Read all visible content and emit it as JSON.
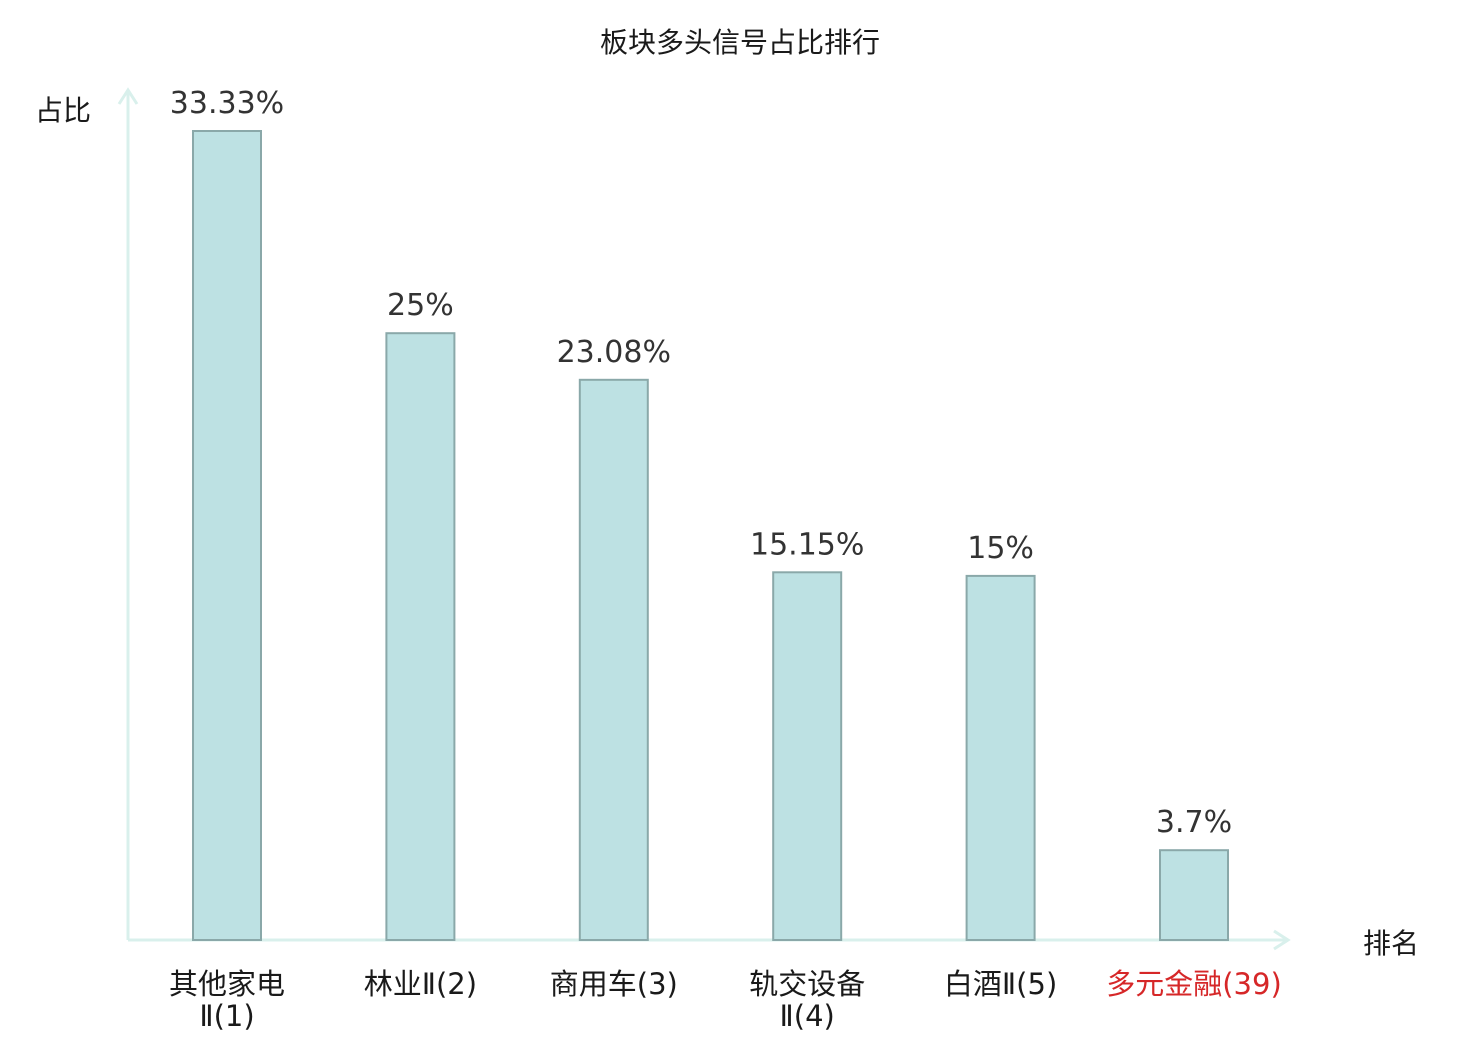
{
  "chart_data": {
    "type": "bar",
    "title": "板块多头信号占比排行",
    "xlabel": "排名",
    "ylabel": "占比",
    "categories": [
      [
        "其他家电",
        "Ⅱ(1)"
      ],
      [
        "林业Ⅱ(2)"
      ],
      [
        "商用车(3)"
      ],
      [
        "轨交设备",
        "Ⅱ(4)"
      ],
      [
        "白酒Ⅱ(5)"
      ],
      [
        "多元金融(39)"
      ]
    ],
    "values": [
      33.33,
      25,
      23.08,
      15.15,
      15,
      3.7
    ],
    "value_labels": [
      "33.33%",
      "25%",
      "23.08%",
      "15.15%",
      "15%",
      "3.7%"
    ],
    "highlight_index": 5,
    "ylim": [
      0,
      33.33
    ],
    "grid": false,
    "legend": "none"
  },
  "colors": {
    "bar_fill": "#bde1e3",
    "bar_stroke": "#8aa8a9",
    "axis": "#d9f0ec",
    "text": "#333333",
    "label": "#1a1a1a",
    "highlight": "#d62728"
  }
}
